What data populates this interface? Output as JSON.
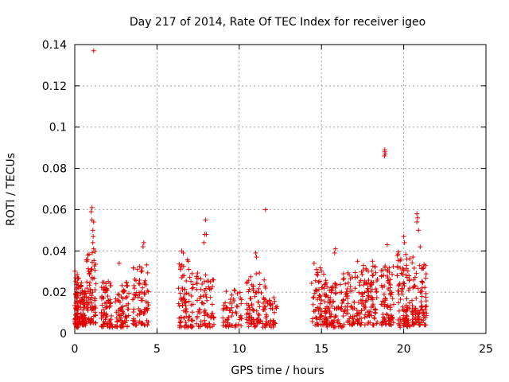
{
  "chart_data": {
    "type": "scatter",
    "title": "Day 217 of 2014, Rate Of TEC Index for receiver igeo",
    "xlabel": "GPS time / hours",
    "ylabel": "ROTI / TECUs",
    "xlim": [
      0,
      25
    ],
    "ylim": [
      0,
      0.14
    ],
    "xticks": [
      0,
      5,
      10,
      15,
      20,
      25
    ],
    "xtick_labels": [
      "0",
      "5",
      "10",
      "15",
      "20",
      "25"
    ],
    "yticks": [
      0,
      0.02,
      0.04,
      0.06,
      0.08,
      0.1,
      0.12,
      0.14
    ],
    "ytick_labels": [
      "0",
      "0.02",
      "0.04",
      "0.06",
      "0.08",
      "0.1",
      "0.12",
      "0.14"
    ],
    "grid": true,
    "marker": "+",
    "color": "#e00000",
    "clusters": [
      {
        "x_start": 0.0,
        "x_end": 0.25,
        "y_low": 0.003,
        "y_high": 0.031,
        "n": 70
      },
      {
        "x_start": 0.25,
        "x_end": 0.7,
        "y_low": 0.004,
        "y_high": 0.026,
        "n": 70
      },
      {
        "x_start": 0.7,
        "x_end": 1.3,
        "y_low": 0.005,
        "y_high": 0.04,
        "n": 80
      },
      {
        "x_start": 1.6,
        "x_end": 2.3,
        "y_low": 0.003,
        "y_high": 0.026,
        "n": 70
      },
      {
        "x_start": 2.4,
        "x_end": 3.3,
        "y_low": 0.003,
        "y_high": 0.025,
        "n": 70
      },
      {
        "x_start": 3.5,
        "x_end": 4.5,
        "y_low": 0.004,
        "y_high": 0.034,
        "n": 80
      },
      {
        "x_start": 6.3,
        "x_end": 7.2,
        "y_low": 0.003,
        "y_high": 0.036,
        "n": 85
      },
      {
        "x_start": 7.4,
        "x_end": 8.5,
        "y_low": 0.003,
        "y_high": 0.03,
        "n": 75
      },
      {
        "x_start": 9.0,
        "x_end": 10.2,
        "y_low": 0.003,
        "y_high": 0.022,
        "n": 55
      },
      {
        "x_start": 10.4,
        "x_end": 11.6,
        "y_low": 0.003,
        "y_high": 0.03,
        "n": 85
      },
      {
        "x_start": 11.6,
        "x_end": 12.3,
        "y_low": 0.003,
        "y_high": 0.018,
        "n": 40
      },
      {
        "x_start": 14.4,
        "x_end": 15.3,
        "y_low": 0.004,
        "y_high": 0.032,
        "n": 80
      },
      {
        "x_start": 15.3,
        "x_end": 16.3,
        "y_low": 0.003,
        "y_high": 0.025,
        "n": 80
      },
      {
        "x_start": 16.3,
        "x_end": 17.5,
        "y_low": 0.004,
        "y_high": 0.03,
        "n": 90
      },
      {
        "x_start": 17.5,
        "x_end": 18.4,
        "y_low": 0.004,
        "y_high": 0.033,
        "n": 85
      },
      {
        "x_start": 18.6,
        "x_end": 19.4,
        "y_low": 0.004,
        "y_high": 0.033,
        "n": 85
      },
      {
        "x_start": 19.6,
        "x_end": 20.4,
        "y_low": 0.003,
        "y_high": 0.04,
        "n": 95
      },
      {
        "x_start": 20.5,
        "x_end": 21.4,
        "y_low": 0.004,
        "y_high": 0.038,
        "n": 95
      }
    ],
    "outliers": [
      {
        "x": 1.15,
        "y": 0.137
      },
      {
        "x": 18.85,
        "y": 0.089
      },
      {
        "x": 18.85,
        "y": 0.088
      },
      {
        "x": 18.87,
        "y": 0.087
      },
      {
        "x": 18.83,
        "y": 0.086
      },
      {
        "x": 11.6,
        "y": 0.06
      },
      {
        "x": 1.05,
        "y": 0.061
      },
      {
        "x": 1.0,
        "y": 0.059
      },
      {
        "x": 1.05,
        "y": 0.055
      },
      {
        "x": 1.15,
        "y": 0.054
      },
      {
        "x": 1.1,
        "y": 0.05
      },
      {
        "x": 1.12,
        "y": 0.047
      },
      {
        "x": 1.1,
        "y": 0.044
      },
      {
        "x": 1.15,
        "y": 0.041
      },
      {
        "x": 20.8,
        "y": 0.058
      },
      {
        "x": 20.85,
        "y": 0.056
      },
      {
        "x": 20.8,
        "y": 0.054
      },
      {
        "x": 20.9,
        "y": 0.05
      },
      {
        "x": 7.95,
        "y": 0.055
      },
      {
        "x": 7.9,
        "y": 0.048
      },
      {
        "x": 8.0,
        "y": 0.048
      },
      {
        "x": 7.85,
        "y": 0.044
      },
      {
        "x": 4.2,
        "y": 0.044
      },
      {
        "x": 4.15,
        "y": 0.042
      },
      {
        "x": 20.0,
        "y": 0.047
      },
      {
        "x": 20.05,
        "y": 0.044
      },
      {
        "x": 19.0,
        "y": 0.043
      },
      {
        "x": 21.0,
        "y": 0.042
      },
      {
        "x": 15.85,
        "y": 0.041
      },
      {
        "x": 15.8,
        "y": 0.039
      },
      {
        "x": 11.0,
        "y": 0.039
      },
      {
        "x": 11.05,
        "y": 0.037
      },
      {
        "x": 6.5,
        "y": 0.04
      },
      {
        "x": 6.6,
        "y": 0.039
      },
      {
        "x": 17.2,
        "y": 0.035
      },
      {
        "x": 18.1,
        "y": 0.035
      },
      {
        "x": 14.55,
        "y": 0.034
      },
      {
        "x": 2.7,
        "y": 0.034
      },
      {
        "x": 6.9,
        "y": 0.035
      }
    ]
  }
}
